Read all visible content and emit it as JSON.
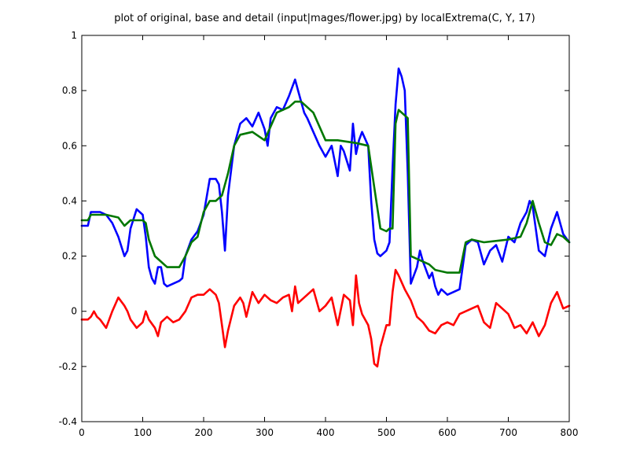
{
  "chart_data": {
    "type": "line",
    "title": "plot of original, base and detail (input|mages/flower.jpg) by localExtrema(C, Y, 17)",
    "xlabel": "",
    "ylabel": "",
    "xlim": [
      0,
      800
    ],
    "ylim": [
      -0.4,
      1
    ],
    "xticks": [
      "0",
      "100",
      "200",
      "300",
      "400",
      "500",
      "600",
      "700",
      "800"
    ],
    "yticks": [
      "-0.4",
      "-0.2",
      "0",
      "0.2",
      "0.4",
      "0.6",
      "0.8",
      "1"
    ],
    "grid": false,
    "legend": "none",
    "series": [
      {
        "color": "#0000ff",
        "x": [
          0,
          10,
          15,
          20,
          30,
          40,
          50,
          60,
          70,
          75,
          80,
          90,
          100,
          105,
          110,
          115,
          120,
          125,
          130,
          135,
          140,
          150,
          160,
          165,
          170,
          180,
          190,
          200,
          210,
          220,
          225,
          230,
          235,
          240,
          250,
          260,
          270,
          280,
          290,
          300,
          305,
          310,
          320,
          330,
          340,
          345,
          350,
          355,
          360,
          365,
          370,
          380,
          390,
          400,
          405,
          410,
          420,
          425,
          430,
          440,
          445,
          450,
          455,
          460,
          470,
          475,
          480,
          485,
          490,
          500,
          505,
          510,
          515,
          520,
          525,
          530,
          535,
          540,
          550,
          555,
          560,
          570,
          575,
          580,
          585,
          590,
          600,
          610,
          620,
          630,
          640,
          650,
          660,
          670,
          680,
          690,
          700,
          710,
          720,
          730,
          735,
          740,
          745,
          750,
          760,
          770,
          780,
          790,
          800
        ],
        "y": [
          0.31,
          0.31,
          0.36,
          0.36,
          0.36,
          0.35,
          0.32,
          0.27,
          0.2,
          0.22,
          0.3,
          0.37,
          0.35,
          0.27,
          0.16,
          0.12,
          0.1,
          0.16,
          0.16,
          0.1,
          0.09,
          0.1,
          0.11,
          0.12,
          0.2,
          0.26,
          0.29,
          0.35,
          0.48,
          0.48,
          0.46,
          0.36,
          0.22,
          0.42,
          0.6,
          0.68,
          0.7,
          0.67,
          0.72,
          0.66,
          0.6,
          0.7,
          0.74,
          0.73,
          0.78,
          0.81,
          0.84,
          0.8,
          0.76,
          0.72,
          0.7,
          0.65,
          0.6,
          0.56,
          0.58,
          0.6,
          0.49,
          0.6,
          0.58,
          0.51,
          0.68,
          0.57,
          0.62,
          0.65,
          0.6,
          0.4,
          0.26,
          0.21,
          0.2,
          0.22,
          0.25,
          0.52,
          0.75,
          0.88,
          0.85,
          0.8,
          0.5,
          0.1,
          0.16,
          0.22,
          0.18,
          0.12,
          0.14,
          0.09,
          0.06,
          0.08,
          0.06,
          0.07,
          0.08,
          0.24,
          0.26,
          0.25,
          0.17,
          0.22,
          0.24,
          0.18,
          0.27,
          0.25,
          0.32,
          0.36,
          0.4,
          0.38,
          0.3,
          0.22,
          0.2,
          0.3,
          0.36,
          0.28,
          0.25
        ]
      },
      {
        "color": "#007700",
        "x": [
          0,
          10,
          15,
          20,
          40,
          60,
          70,
          80,
          100,
          105,
          110,
          120,
          130,
          140,
          150,
          160,
          170,
          180,
          190,
          200,
          210,
          220,
          230,
          240,
          250,
          260,
          280,
          300,
          320,
          340,
          350,
          360,
          380,
          400,
          420,
          450,
          470,
          480,
          490,
          500,
          505,
          510,
          515,
          520,
          530,
          535,
          540,
          550,
          560,
          570,
          580,
          600,
          610,
          620,
          630,
          640,
          660,
          700,
          720,
          730,
          740,
          750,
          760,
          770,
          780,
          790,
          800
        ],
        "y": [
          0.33,
          0.33,
          0.35,
          0.35,
          0.35,
          0.34,
          0.31,
          0.33,
          0.33,
          0.32,
          0.26,
          0.2,
          0.18,
          0.16,
          0.16,
          0.16,
          0.2,
          0.25,
          0.27,
          0.36,
          0.4,
          0.4,
          0.42,
          0.5,
          0.6,
          0.64,
          0.65,
          0.62,
          0.72,
          0.74,
          0.76,
          0.76,
          0.72,
          0.62,
          0.62,
          0.61,
          0.6,
          0.45,
          0.3,
          0.29,
          0.3,
          0.3,
          0.68,
          0.73,
          0.71,
          0.7,
          0.2,
          0.19,
          0.18,
          0.17,
          0.15,
          0.14,
          0.14,
          0.14,
          0.25,
          0.26,
          0.25,
          0.26,
          0.27,
          0.32,
          0.4,
          0.32,
          0.25,
          0.24,
          0.28,
          0.27,
          0.25
        ]
      },
      {
        "color": "#ff0000",
        "x": [
          0,
          10,
          15,
          20,
          25,
          30,
          40,
          50,
          60,
          70,
          75,
          80,
          90,
          100,
          105,
          110,
          120,
          125,
          130,
          140,
          150,
          160,
          170,
          180,
          190,
          200,
          210,
          220,
          225,
          230,
          235,
          240,
          250,
          260,
          265,
          270,
          280,
          290,
          300,
          310,
          320,
          330,
          340,
          345,
          350,
          355,
          360,
          370,
          380,
          390,
          400,
          410,
          420,
          430,
          440,
          445,
          450,
          455,
          460,
          470,
          475,
          480,
          485,
          490,
          500,
          505,
          510,
          515,
          520,
          530,
          540,
          550,
          560,
          570,
          580,
          590,
          600,
          610,
          620,
          630,
          640,
          650,
          660,
          670,
          680,
          690,
          700,
          710,
          720,
          730,
          740,
          750,
          760,
          770,
          780,
          790,
          800
        ],
        "y": [
          -0.03,
          -0.03,
          -0.02,
          0.0,
          -0.02,
          -0.03,
          -0.06,
          0.0,
          0.05,
          0.02,
          0.0,
          -0.03,
          -0.06,
          -0.04,
          0.0,
          -0.03,
          -0.06,
          -0.09,
          -0.04,
          -0.02,
          -0.04,
          -0.03,
          0.0,
          0.05,
          0.06,
          0.06,
          0.08,
          0.06,
          0.03,
          -0.05,
          -0.13,
          -0.07,
          0.02,
          0.05,
          0.03,
          -0.02,
          0.07,
          0.03,
          0.06,
          0.04,
          0.03,
          0.05,
          0.06,
          0.0,
          0.09,
          0.03,
          0.04,
          0.06,
          0.08,
          0.0,
          0.02,
          0.05,
          -0.05,
          0.06,
          0.04,
          -0.05,
          0.13,
          0.03,
          -0.01,
          -0.05,
          -0.1,
          -0.19,
          -0.2,
          -0.13,
          -0.05,
          -0.05,
          0.07,
          0.15,
          0.13,
          0.08,
          0.04,
          -0.02,
          -0.04,
          -0.07,
          -0.08,
          -0.05,
          -0.04,
          -0.05,
          -0.01,
          0.0,
          0.01,
          0.02,
          -0.04,
          -0.06,
          0.03,
          0.01,
          -0.01,
          -0.06,
          -0.05,
          -0.08,
          -0.04,
          -0.09,
          -0.05,
          0.03,
          0.07,
          0.01,
          0.02
        ]
      }
    ]
  }
}
